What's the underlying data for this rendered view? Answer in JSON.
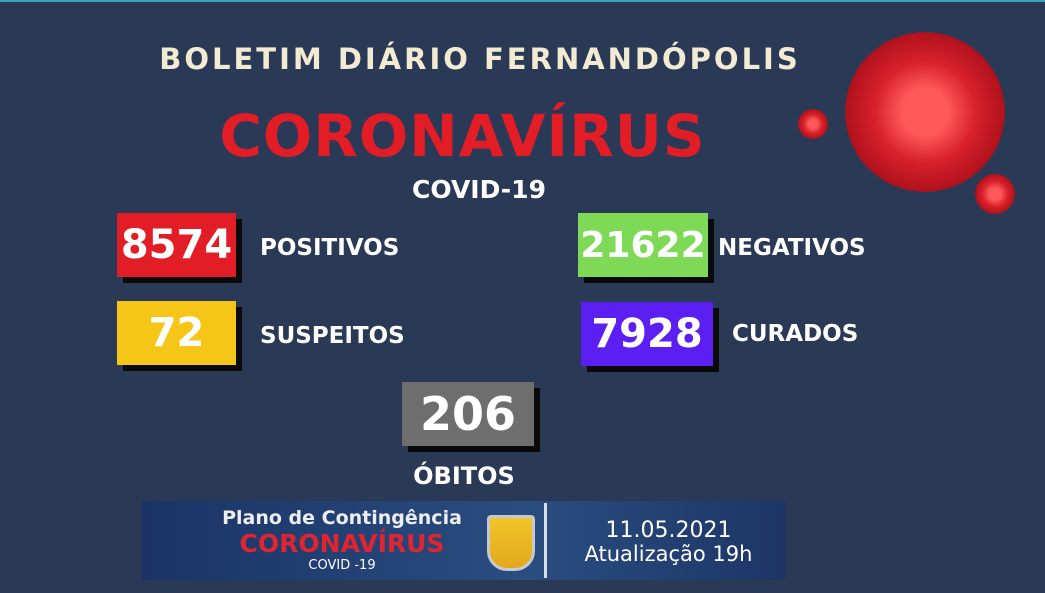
{
  "header": {
    "title": "BOLETIM DIÁRIO FERNANDÓPOLIS",
    "headline": "CORONAVÍRUS",
    "subtitle": "COVID-19"
  },
  "stats": {
    "positivos": {
      "value": "8574",
      "label": "POSITIVOS",
      "color": "#e21d26"
    },
    "suspeitos": {
      "value": "72",
      "label": "SUSPEITOS",
      "color": "#f5c518"
    },
    "negativos": {
      "value": "21622",
      "label": "NEGATIVOS",
      "color": "#7ed957"
    },
    "curados": {
      "value": "7928",
      "label": "CURADOS",
      "color": "#5b1ff2"
    },
    "obitos": {
      "value": "206",
      "label": "ÓBITOS",
      "color": "#6e6e6e"
    }
  },
  "banner": {
    "line1": "Plano de Contingência",
    "line2": "CORONAVÍRUS",
    "line3": "COVID -19",
    "date": "11.05.2021",
    "update": "Atualização 19h"
  },
  "icons": [
    "coronavirus-illustration",
    "city-coat-of-arms"
  ]
}
